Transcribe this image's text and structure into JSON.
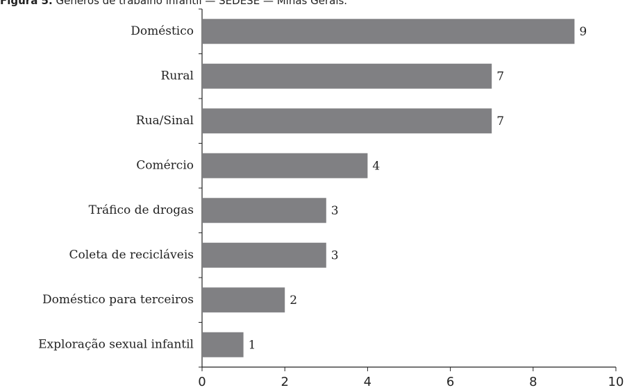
{
  "chart_data": {
    "type": "bar",
    "orientation": "horizontal",
    "title_label": "Figura 5.",
    "title": "Gêneros de trabalho infantil — SEDESE — Minas Gerais.",
    "categories": [
      "Doméstico",
      "Rural",
      "Rua/Sinal",
      "Comércio",
      "Tráfico de drogas",
      "Coleta de recicláveis",
      "Doméstico para terceiros",
      "Exploração sexual infantil"
    ],
    "values": [
      9,
      7,
      7,
      4,
      3,
      3,
      2,
      1
    ],
    "color": "#808083",
    "xlim": [
      0,
      10
    ],
    "xticks": [
      0,
      2,
      4,
      6,
      8,
      10
    ],
    "grid": false
  }
}
